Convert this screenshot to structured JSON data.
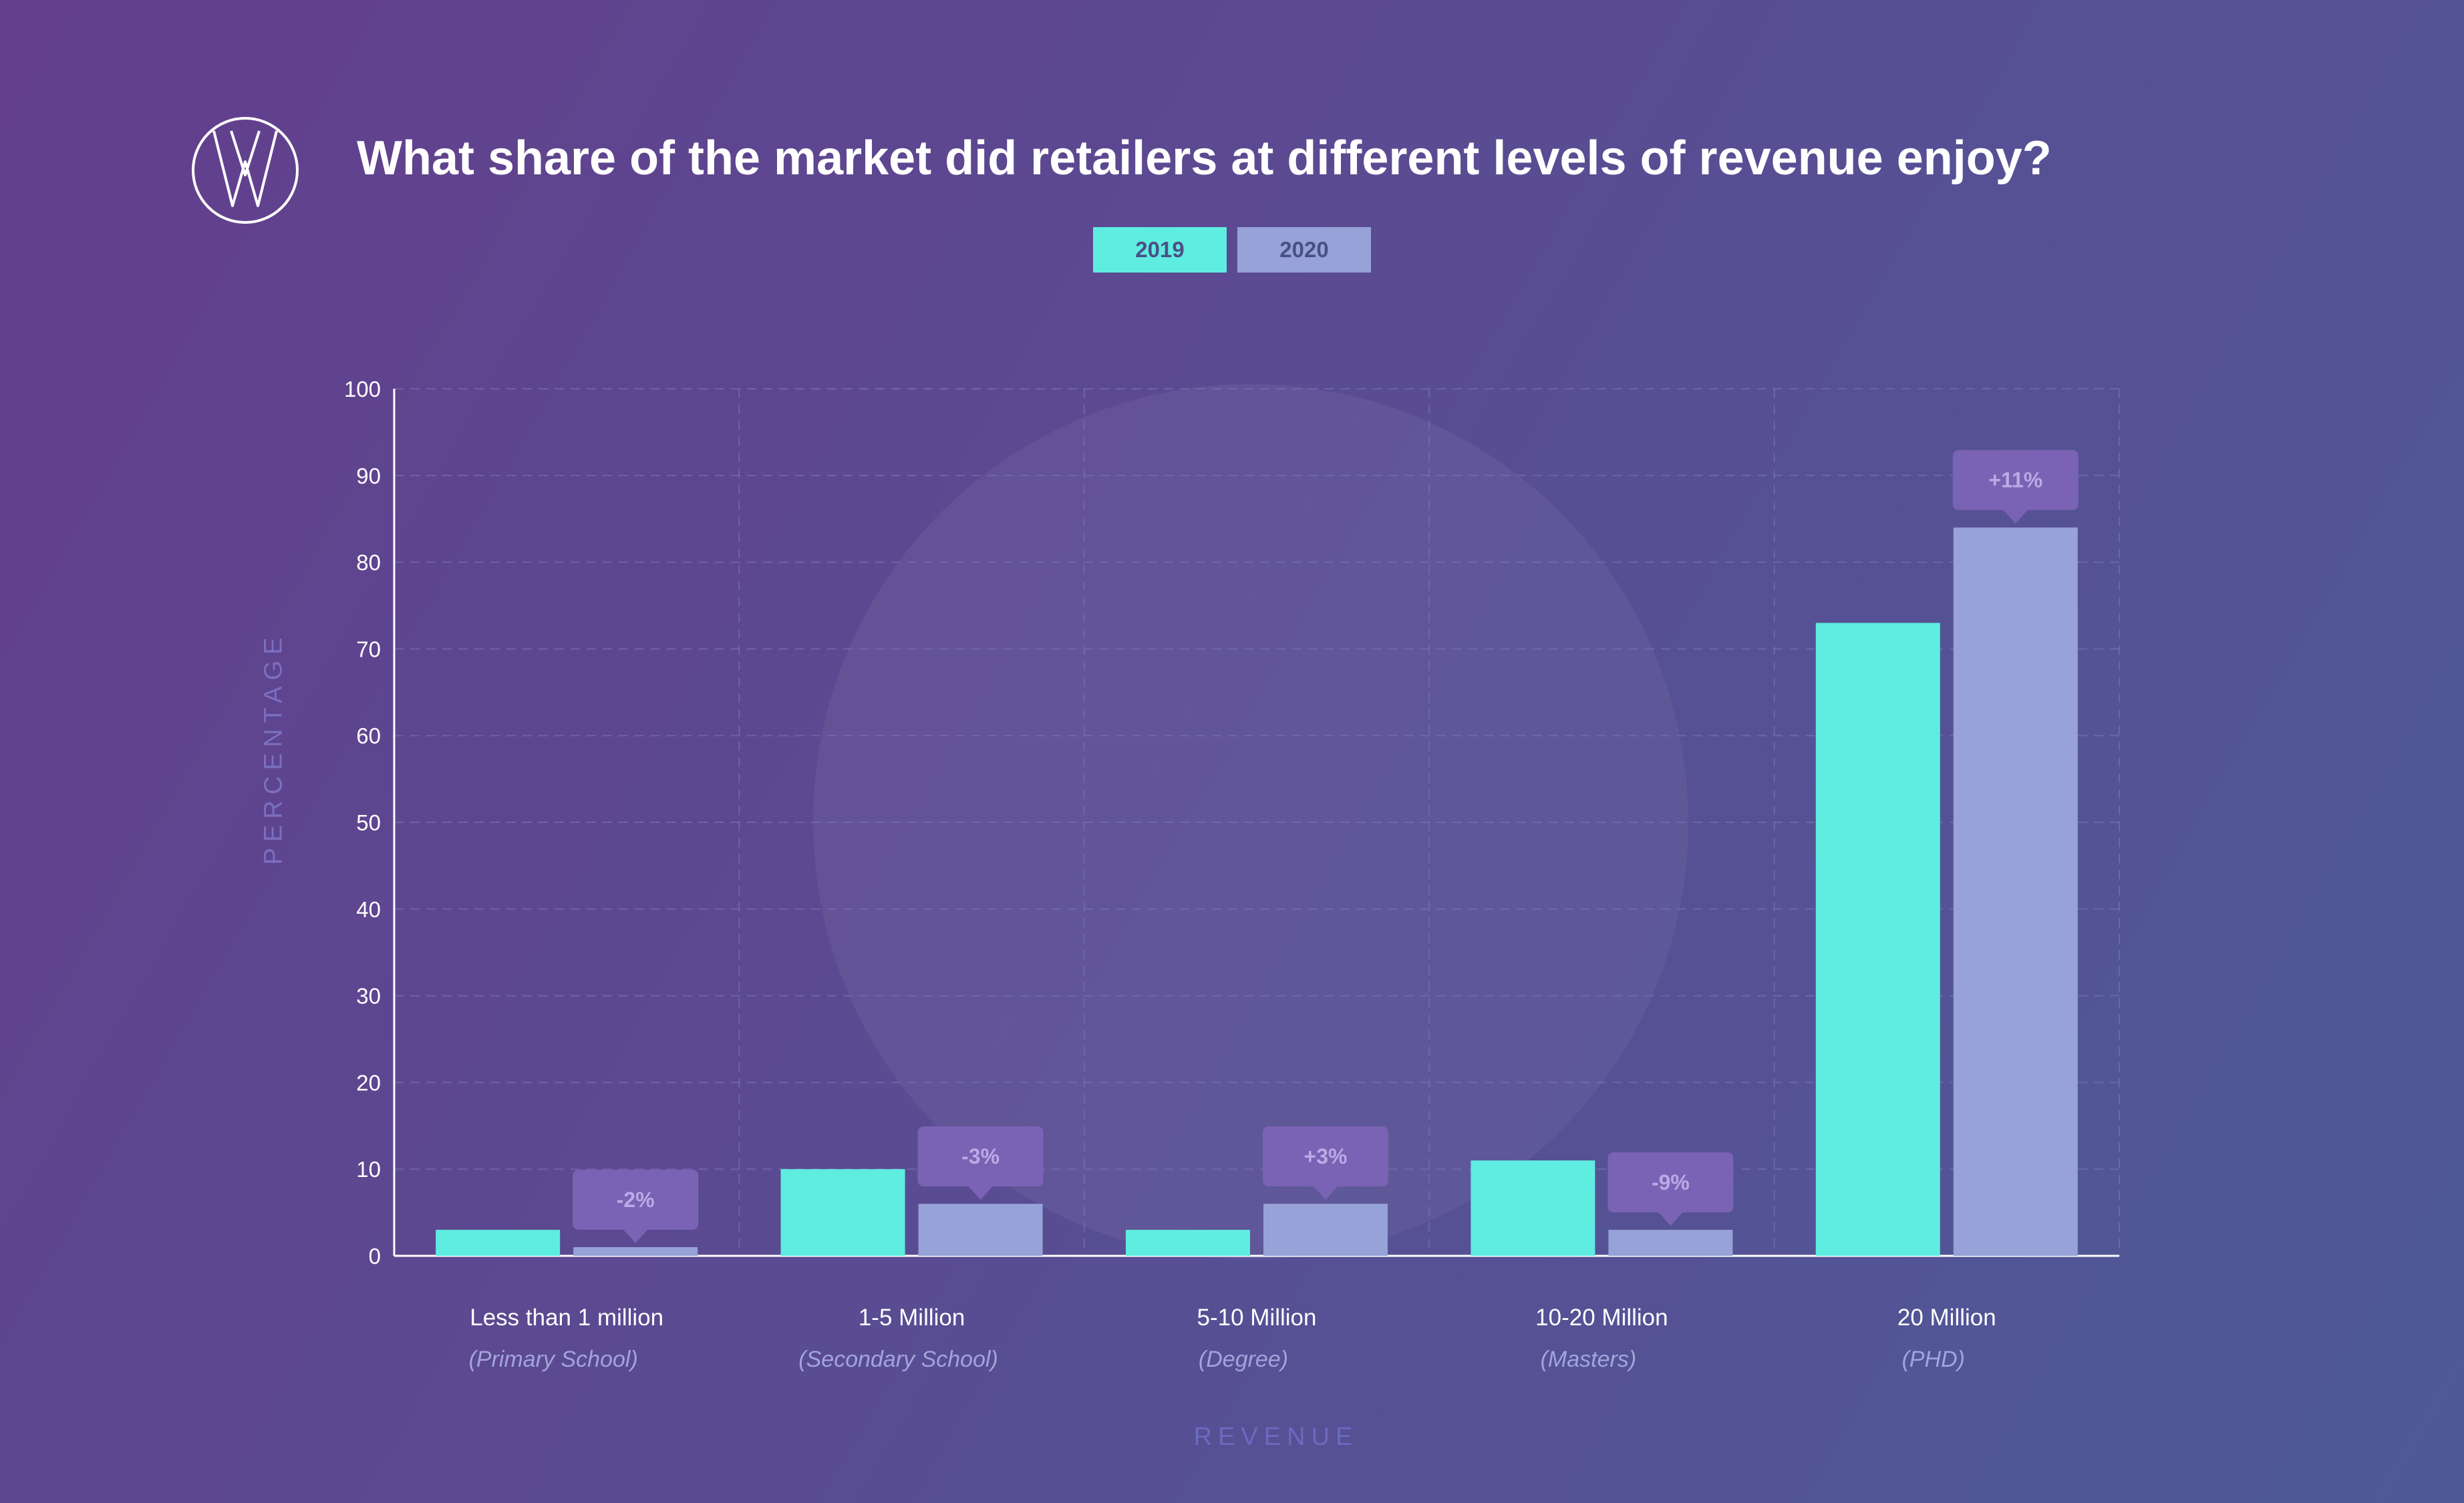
{
  "header": {
    "title": "What share of the market did retailers at different levels of revenue enjoy?",
    "logo_icon": "w-logo-icon"
  },
  "colors": {
    "series_2019": "#5eede0",
    "series_2020": "#97a2d8",
    "callout": "#7a62b4",
    "callout_text": "#b9abe6",
    "grid": "#7a74b8",
    "tick_text": "#ffffff",
    "sub_text": "#a2a4da"
  },
  "chart_data": {
    "type": "bar",
    "title": "What share of the market did retailers at different levels of revenue enjoy?",
    "xlabel": "REVENUE",
    "ylabel": "PERCENTAGE",
    "ylim": [
      0,
      100
    ],
    "yticks": [
      0,
      10,
      20,
      30,
      40,
      50,
      60,
      70,
      80,
      90,
      100
    ],
    "grid": true,
    "legend": "top-center",
    "categories": [
      "Less than 1 million",
      "1-5 Million",
      "5-10 Million",
      "10-20 Million",
      "20 Million"
    ],
    "subcategories": [
      "(Primary School)",
      "(Secondary School)",
      "(Degree)",
      "(Masters)",
      "(PHD)"
    ],
    "series": [
      {
        "name": "2019",
        "values": [
          3,
          10,
          3,
          11,
          73
        ]
      },
      {
        "name": "2020",
        "values": [
          1,
          6,
          6,
          3,
          84
        ]
      }
    ],
    "annotations": [
      "-2%",
      "-3%",
      "+3%",
      "-9%",
      "+11%"
    ]
  }
}
